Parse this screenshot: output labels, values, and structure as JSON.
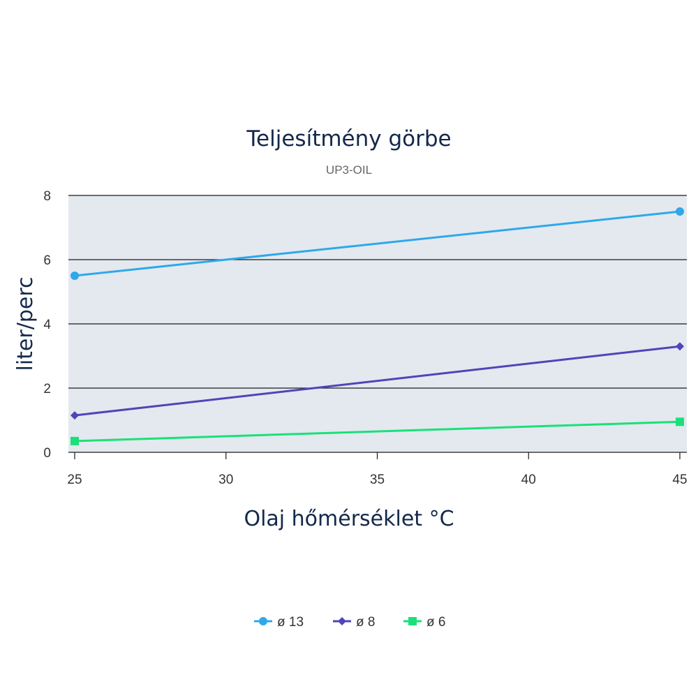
{
  "chart_data": {
    "type": "line",
    "title": "Teljesítmény görbe",
    "subtitle": "UP3-OIL",
    "xlabel": "Olaj hőmérséklet °C",
    "ylabel": "liter/perc",
    "x": [
      25,
      45
    ],
    "x_ticks": [
      "25",
      "30",
      "35",
      "40",
      "45"
    ],
    "y_ticks": [
      "0",
      "2",
      "4",
      "6",
      "8"
    ],
    "xlim": [
      25,
      45
    ],
    "ylim": [
      0,
      8
    ],
    "grid": true,
    "legend_position": "bottom",
    "plot_background": "#e3e9ef",
    "series": [
      {
        "name": "ø 13",
        "values": [
          5.5,
          7.5
        ],
        "color": "#2ea8ea",
        "marker": "circle"
      },
      {
        "name": "ø 8",
        "values": [
          1.15,
          3.3
        ],
        "color": "#4f45b8",
        "marker": "diamond"
      },
      {
        "name": "ø 6",
        "values": [
          0.35,
          0.95
        ],
        "color": "#1ae07a",
        "marker": "square"
      }
    ]
  }
}
